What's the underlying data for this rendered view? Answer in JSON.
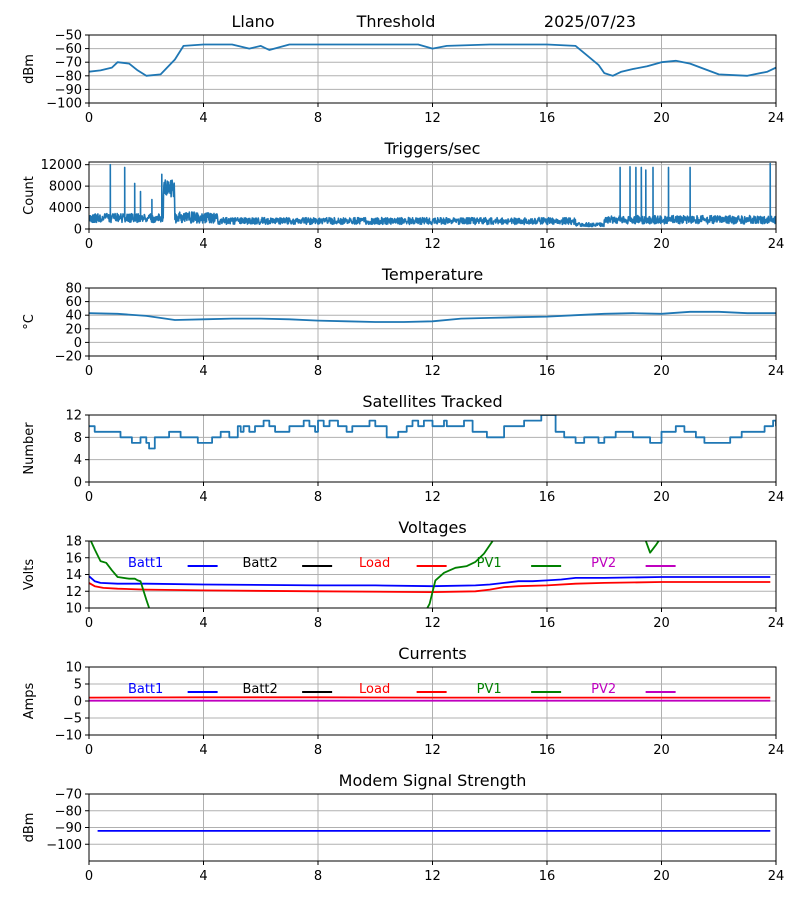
{
  "header": {
    "site": "Llano",
    "label": "Threshold",
    "date": "2025/07/23"
  },
  "chart_data": [
    {
      "id": "threshold",
      "type": "line",
      "title": "",
      "ylabel": "dBm",
      "xlim": [
        0,
        24
      ],
      "ylim": [
        -100,
        -50
      ],
      "xticks": [
        0,
        4,
        8,
        12,
        16,
        20,
        24
      ],
      "yticks": [
        -100,
        -90,
        -80,
        -70,
        -60,
        -50
      ],
      "grid": true,
      "series": [
        {
          "color": "#1f77b4",
          "x": [
            0,
            0.4,
            0.8,
            1.0,
            1.4,
            1.7,
            2.0,
            2.5,
            3.0,
            3.3,
            4.0,
            5.0,
            5.6,
            6.0,
            6.3,
            7.0,
            9.0,
            11.5,
            12.0,
            12.5,
            14.0,
            16.0,
            17.0,
            17.4,
            17.8,
            18.0,
            18.3,
            18.6,
            19.0,
            19.5,
            20.0,
            20.5,
            21.0,
            21.5,
            22.0,
            23.0,
            23.7,
            24.0
          ],
          "y": [
            -77,
            -76,
            -74,
            -70,
            -71,
            -76,
            -80,
            -79,
            -68,
            -58,
            -57,
            -57,
            -60,
            -58,
            -61,
            -57,
            -57,
            -57,
            -60,
            -58,
            -57,
            -57,
            -58,
            -65,
            -72,
            -78,
            -80,
            -77,
            -75,
            -73,
            -70,
            -69,
            -71,
            -75,
            -79,
            -80,
            -77,
            -74
          ]
        }
      ]
    },
    {
      "id": "triggers",
      "type": "line",
      "title": "Triggers/sec",
      "ylabel": "Count",
      "xlim": [
        0,
        24
      ],
      "ylim": [
        0,
        12500
      ],
      "xticks": [
        0,
        4,
        8,
        12,
        16,
        20,
        24
      ],
      "yticks": [
        0,
        4000,
        8000,
        12000
      ],
      "grid": true,
      "series": [
        {
          "color": "#1f77b4",
          "noise": [
            {
              "from": 0,
              "to": 2.6,
              "base": 1800,
              "amp": 1200
            },
            {
              "from": 2.6,
              "to": 3.0,
              "base": 7000,
              "amp": 2500
            },
            {
              "from": 3.0,
              "to": 4.5,
              "base": 1800,
              "amp": 1500
            },
            {
              "from": 4.5,
              "to": 17.0,
              "base": 1300,
              "amp": 900
            },
            {
              "from": 17.0,
              "to": 18.0,
              "base": 700,
              "amp": 500
            },
            {
              "from": 18.0,
              "to": 24.0,
              "base": 1500,
              "amp": 1100
            }
          ],
          "spikes": [
            {
              "x": 0.75,
              "y": 12000
            },
            {
              "x": 1.25,
              "y": 11500
            },
            {
              "x": 1.6,
              "y": 8500
            },
            {
              "x": 1.8,
              "y": 7000
            },
            {
              "x": 2.2,
              "y": 5500
            },
            {
              "x": 2.55,
              "y": 10200
            },
            {
              "x": 18.55,
              "y": 11500
            },
            {
              "x": 18.9,
              "y": 11600
            },
            {
              "x": 19.1,
              "y": 11500
            },
            {
              "x": 19.3,
              "y": 11500
            },
            {
              "x": 19.45,
              "y": 11000
            },
            {
              "x": 19.7,
              "y": 11500
            },
            {
              "x": 20.25,
              "y": 11500
            },
            {
              "x": 21.0,
              "y": 11500
            },
            {
              "x": 23.8,
              "y": 12200
            },
            {
              "x": 24.0,
              "y": 11800
            }
          ]
        }
      ]
    },
    {
      "id": "temperature",
      "type": "line",
      "title": "Temperature",
      "ylabel": "°C",
      "xlim": [
        0,
        24
      ],
      "ylim": [
        -20,
        80
      ],
      "xticks": [
        0,
        4,
        8,
        12,
        16,
        20,
        24
      ],
      "yticks": [
        -20,
        0,
        20,
        40,
        60,
        80
      ],
      "grid": true,
      "series": [
        {
          "color": "#1f77b4",
          "x": [
            0,
            1,
            2,
            3,
            4,
            5,
            6,
            7,
            8,
            9,
            10,
            11,
            12,
            13,
            14,
            15,
            16,
            17,
            18,
            19,
            20,
            21,
            22,
            23,
            24
          ],
          "y": [
            43,
            42,
            39,
            33,
            34,
            35,
            35,
            34,
            32,
            31,
            30,
            30,
            31,
            35,
            36,
            37,
            38,
            40,
            42,
            43,
            42,
            45,
            45,
            43,
            43
          ]
        }
      ]
    },
    {
      "id": "satellites",
      "type": "line",
      "title": "Satellites Tracked",
      "ylabel": "Number",
      "xlim": [
        0,
        24
      ],
      "ylim": [
        0,
        12
      ],
      "xticks": [
        0,
        4,
        8,
        12,
        16,
        20,
        24
      ],
      "yticks": [
        0,
        4,
        8,
        12
      ],
      "grid": true,
      "series": [
        {
          "color": "#1f77b4",
          "step": true,
          "x": [
            0,
            0.2,
            1.0,
            1.1,
            1.2,
            1.5,
            1.8,
            2.0,
            2.1,
            2.3,
            2.8,
            3.2,
            3.8,
            4.3,
            4.6,
            4.9,
            5.2,
            5.3,
            5.4,
            5.6,
            5.8,
            6.1,
            6.3,
            6.5,
            7.0,
            7.5,
            7.7,
            7.9,
            8.0,
            8.2,
            8.4,
            8.7,
            9.0,
            9.2,
            9.4,
            9.8,
            10.0,
            10.4,
            10.8,
            11.1,
            11.3,
            11.5,
            11.7,
            12.0,
            12.4,
            12.5,
            12.8,
            13.1,
            13.4,
            13.9,
            14.5,
            15.2,
            15.8,
            16.3,
            16.6,
            17.0,
            17.3,
            17.8,
            18.0,
            18.4,
            19.0,
            19.6,
            20.0,
            20.5,
            20.8,
            21.2,
            21.5,
            22.4,
            22.8,
            23.6,
            23.9,
            24.0
          ],
          "y": [
            10,
            9,
            9,
            8,
            8,
            7,
            8,
            7,
            6,
            8,
            9,
            8,
            7,
            8,
            9,
            8,
            10,
            9,
            10,
            9,
            10,
            11,
            10,
            9,
            10,
            11,
            10,
            9,
            11,
            10,
            11,
            10,
            9,
            10,
            10,
            11,
            10,
            8,
            9,
            10,
            11,
            10,
            11,
            10,
            11,
            10,
            10,
            11,
            9,
            8,
            10,
            11,
            12,
            9,
            8,
            7,
            8,
            7,
            8,
            9,
            8,
            7,
            9,
            10,
            9,
            8,
            7,
            8,
            9,
            10,
            11,
            10
          ]
        }
      ]
    },
    {
      "id": "voltages",
      "type": "line",
      "title": "Voltages",
      "ylabel": "Volts",
      "xlim": [
        0,
        24
      ],
      "ylim": [
        10,
        18
      ],
      "xticks": [
        0,
        4,
        8,
        12,
        16,
        20,
        24
      ],
      "yticks": [
        10,
        12,
        14,
        16,
        18
      ],
      "grid": true,
      "legend": [
        {
          "name": "Batt1",
          "color": "#0000ff"
        },
        {
          "name": "Batt2",
          "color": "#000000"
        },
        {
          "name": "Load",
          "color": "#ff0000"
        },
        {
          "name": "PV1",
          "color": "#008000"
        },
        {
          "name": "PV2",
          "color": "#bf00bf"
        }
      ],
      "series": [
        {
          "name": "Batt1",
          "color": "#0000ff",
          "x": [
            0,
            0.2,
            0.4,
            1.0,
            2.0,
            4.0,
            8.0,
            10.0,
            12.0,
            13.5,
            14.0,
            14.5,
            15.0,
            15.5,
            16.0,
            16.5,
            17.0,
            18.0,
            20.0,
            22.0,
            23.8
          ],
          "y": [
            13.8,
            13.2,
            13.0,
            12.9,
            12.9,
            12.8,
            12.7,
            12.7,
            12.6,
            12.7,
            12.8,
            13.0,
            13.2,
            13.2,
            13.3,
            13.4,
            13.6,
            13.6,
            13.7,
            13.7,
            13.7
          ]
        },
        {
          "name": "Load",
          "color": "#ff0000",
          "x": [
            0,
            0.2,
            0.5,
            1.0,
            2.0,
            4.0,
            8.0,
            12.0,
            13.5,
            14.0,
            14.5,
            15.0,
            16.0,
            17.0,
            18.0,
            20.0,
            22.0,
            23.8
          ],
          "y": [
            13.0,
            12.6,
            12.4,
            12.3,
            12.2,
            12.1,
            12.0,
            11.9,
            12.0,
            12.2,
            12.5,
            12.6,
            12.7,
            12.9,
            13.0,
            13.1,
            13.1,
            13.1
          ]
        },
        {
          "name": "PV1",
          "color": "#008000",
          "clip": true,
          "x": [
            0,
            0.2,
            0.4,
            0.6,
            0.8,
            1.0,
            1.4,
            1.6,
            1.7,
            1.8,
            2.0,
            2.3,
            11.5,
            11.9,
            12.1,
            12.4,
            12.8,
            13.2,
            13.5,
            13.8,
            14.2,
            19.4,
            19.6,
            19.8,
            20.0,
            20.3
          ],
          "y": [
            18.5,
            17.0,
            15.6,
            15.4,
            14.5,
            13.7,
            13.5,
            13.5,
            13.3,
            13.2,
            11.0,
            8.0,
            8.0,
            10.5,
            13.3,
            14.2,
            14.8,
            15.0,
            15.5,
            16.5,
            18.5,
            18.5,
            16.6,
            17.5,
            18.5,
            19.0
          ]
        }
      ]
    },
    {
      "id": "currents",
      "type": "line",
      "title": "Currents",
      "ylabel": "Amps",
      "xlim": [
        0,
        24
      ],
      "ylim": [
        -10,
        10
      ],
      "xticks": [
        0,
        4,
        8,
        12,
        16,
        20,
        24
      ],
      "yticks": [
        -10,
        -5,
        0,
        5,
        10
      ],
      "grid": true,
      "legend": [
        {
          "name": "Batt1",
          "color": "#0000ff"
        },
        {
          "name": "Batt2",
          "color": "#000000"
        },
        {
          "name": "Load",
          "color": "#ff0000"
        },
        {
          "name": "PV1",
          "color": "#008000"
        },
        {
          "name": "PV2",
          "color": "#bf00bf"
        }
      ],
      "series": [
        {
          "name": "Load",
          "color": "#ff0000",
          "x": [
            0,
            4,
            8,
            12,
            16,
            20,
            23.8
          ],
          "y": [
            1.0,
            1.1,
            1.1,
            1.0,
            1.0,
            1.0,
            1.0
          ]
        },
        {
          "name": "PV2",
          "color": "#bf00bf",
          "x": [
            0,
            23.8
          ],
          "y": [
            0.1,
            0.1
          ]
        }
      ]
    },
    {
      "id": "modem",
      "type": "line",
      "title": "Modem Signal Strength",
      "ylabel": "dBm",
      "xlim": [
        0,
        24
      ],
      "ylim": [
        -110,
        -70
      ],
      "xticks": [
        0,
        4,
        8,
        12,
        16,
        20,
        24
      ],
      "yticks": [
        -100,
        -90,
        -80,
        -70
      ],
      "grid": true,
      "series": [
        {
          "color": "#0000ff",
          "x": [
            0.3,
            23.8
          ],
          "y": [
            -92,
            -92
          ]
        }
      ]
    }
  ]
}
